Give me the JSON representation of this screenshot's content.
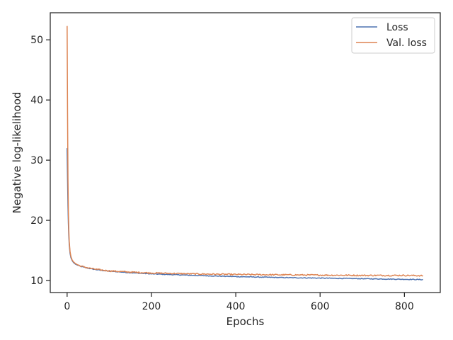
{
  "chart_data": {
    "type": "line",
    "xlabel": "Epochs",
    "ylabel": "Negative log-likelihood",
    "xlim": [
      -40,
      885
    ],
    "ylim": [
      8.0,
      54.5
    ],
    "xticks": [
      0,
      200,
      400,
      600,
      800
    ],
    "yticks": [
      10,
      20,
      30,
      40,
      50
    ],
    "grid": false,
    "legend_position": "top-right",
    "series": [
      {
        "name": "Loss",
        "color": "#4c72b0",
        "x": [
          0,
          1,
          2,
          3,
          4,
          5,
          7,
          9,
          12,
          15,
          20,
          30,
          40,
          60,
          80,
          100,
          150,
          200,
          300,
          400,
          500,
          600,
          700,
          800,
          845
        ],
        "y": [
          32.0,
          27.0,
          22.5,
          19.5,
          17.4,
          16.0,
          14.5,
          13.8,
          13.3,
          13.0,
          12.7,
          12.4,
          12.2,
          11.9,
          11.7,
          11.55,
          11.3,
          11.1,
          10.85,
          10.65,
          10.5,
          10.4,
          10.3,
          10.2,
          10.15
        ]
      },
      {
        "name": "Val. loss",
        "color": "#dd8452",
        "x": [
          0,
          1,
          2,
          3,
          4,
          5,
          7,
          9,
          12,
          15,
          20,
          30,
          40,
          60,
          80,
          100,
          150,
          200,
          300,
          400,
          500,
          600,
          700,
          800,
          845
        ],
        "y": [
          52.3,
          38.0,
          27.0,
          21.5,
          18.5,
          16.5,
          14.8,
          14.0,
          13.4,
          13.1,
          12.8,
          12.45,
          12.25,
          11.95,
          11.75,
          11.6,
          11.4,
          11.25,
          11.1,
          11.0,
          10.95,
          10.9,
          10.85,
          10.85,
          10.8
        ]
      }
    ]
  }
}
